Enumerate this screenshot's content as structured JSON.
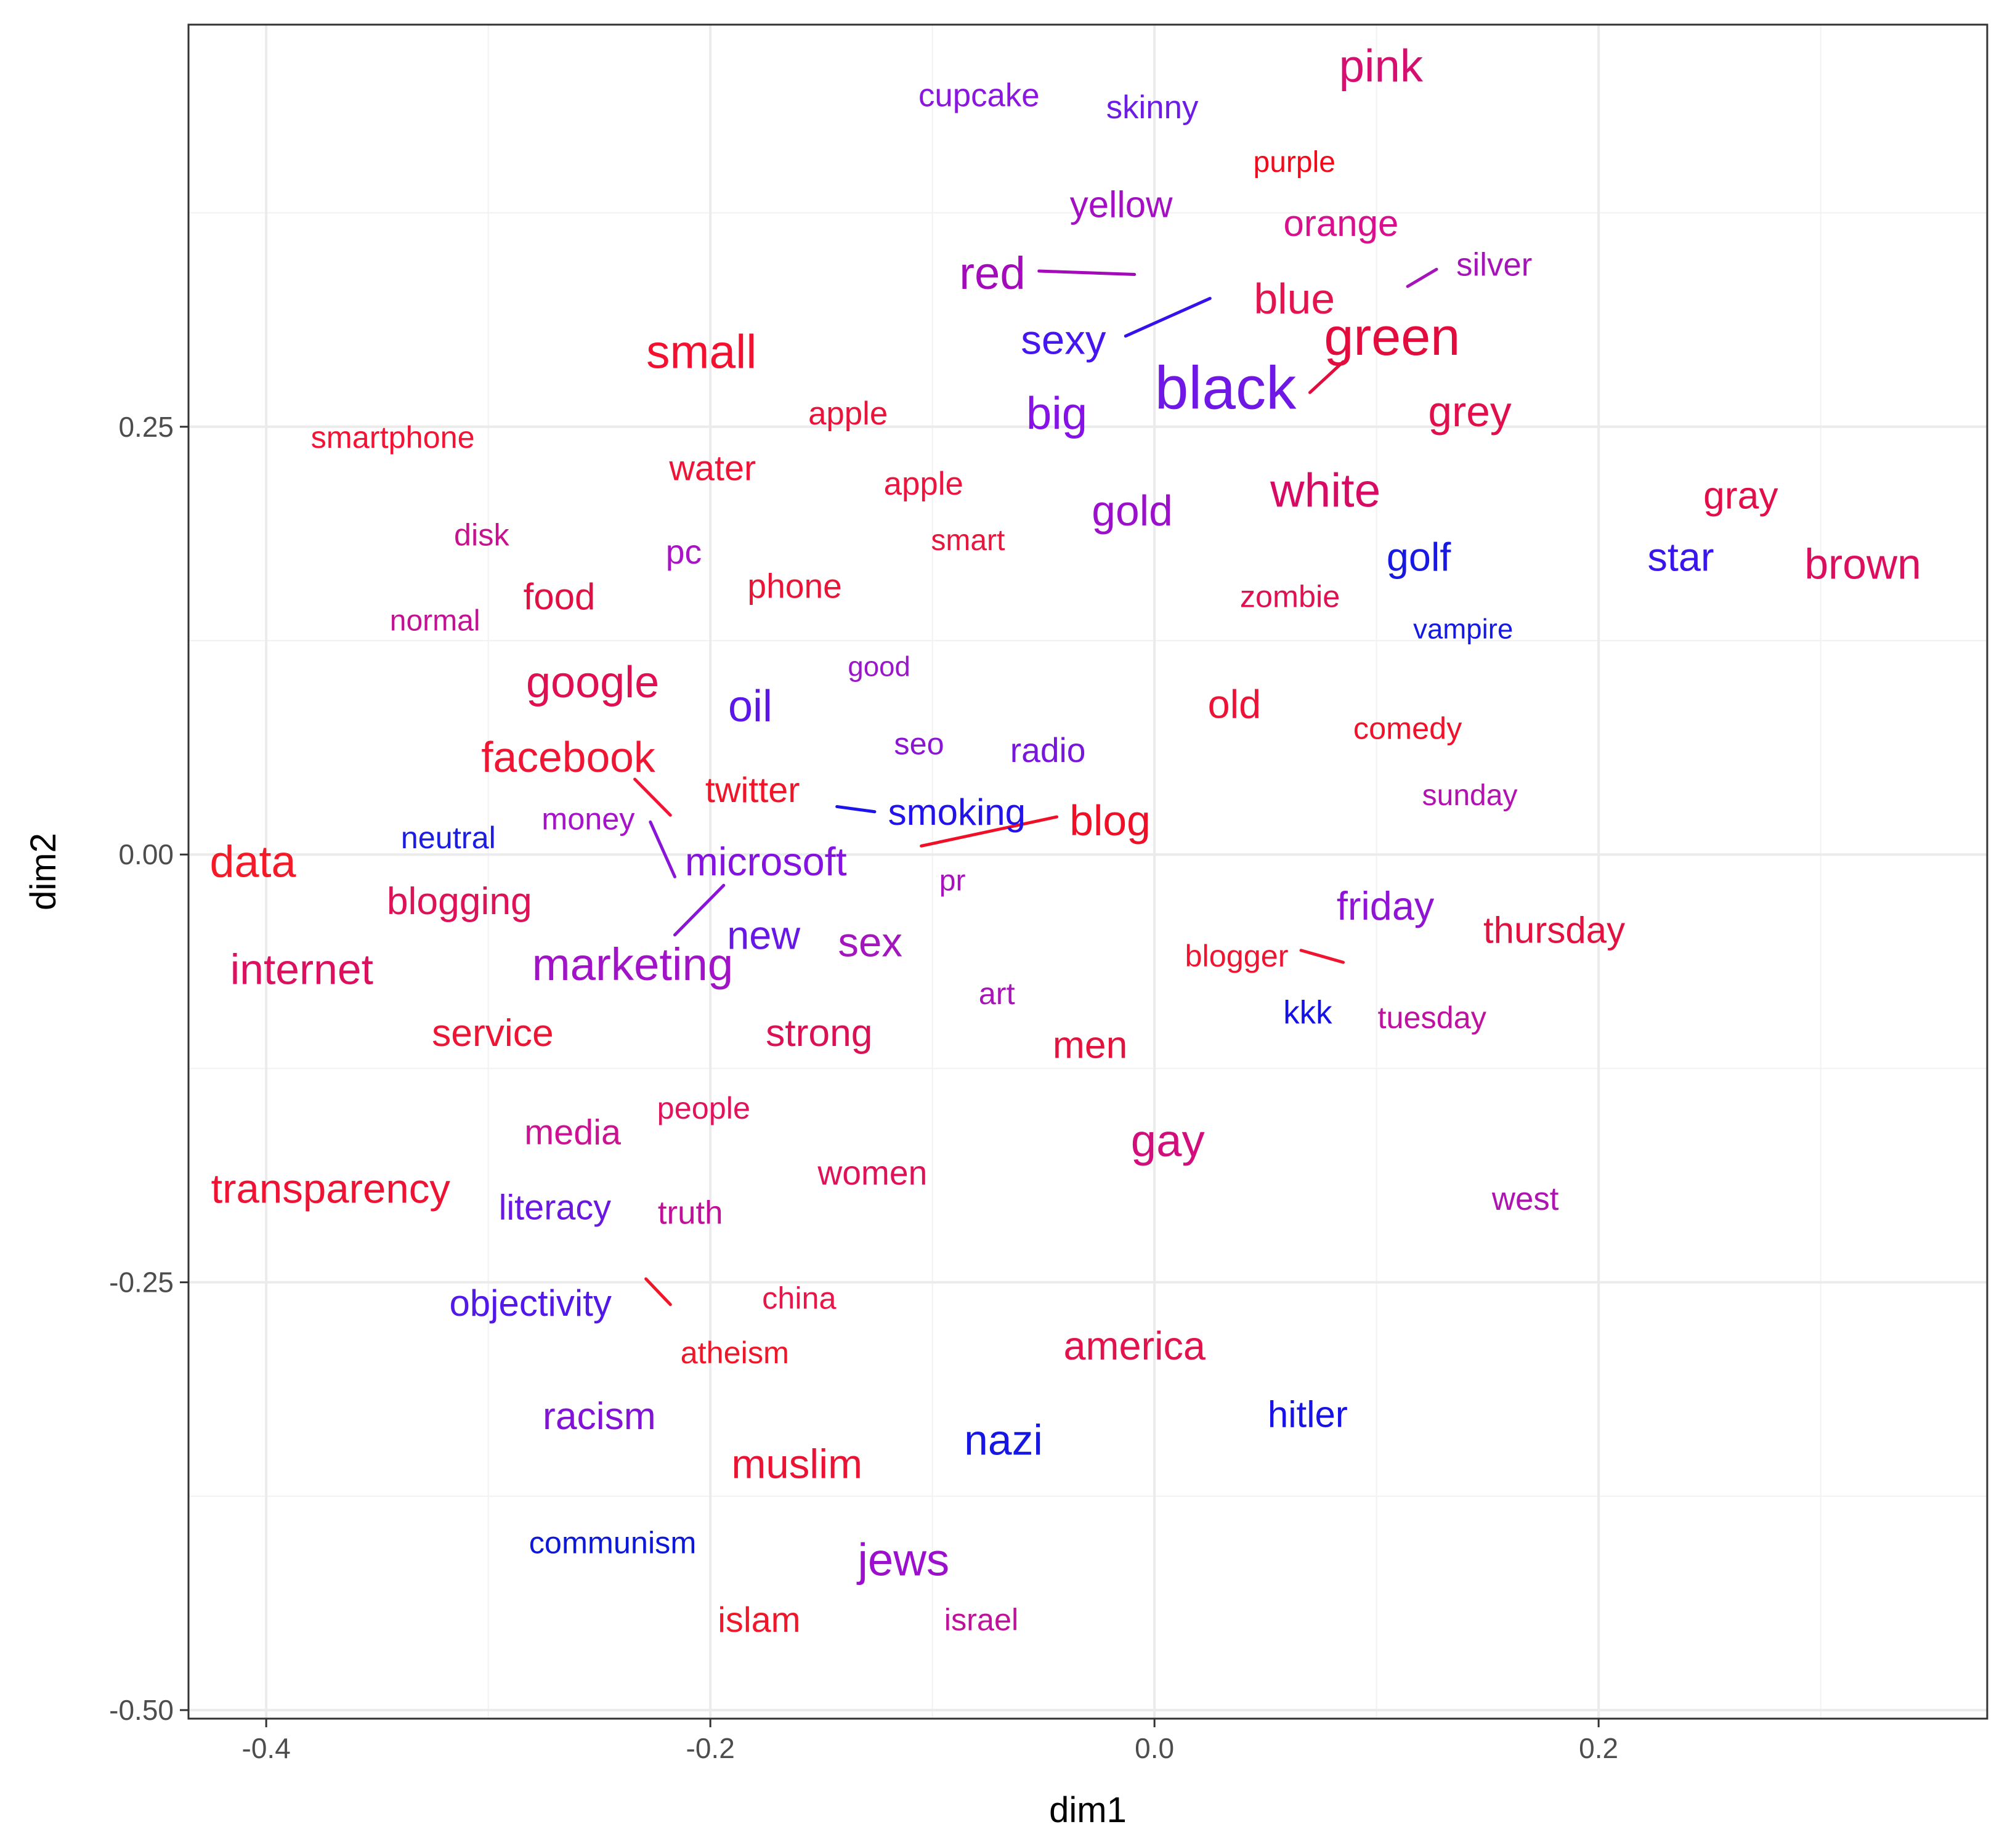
{
  "chart_data": {
    "type": "scatter",
    "title": "",
    "xlabel": "dim1",
    "ylabel": "dim2",
    "xlim": [
      -0.435,
      0.375
    ],
    "ylim": [
      -0.505,
      0.485
    ],
    "x_ticks": [
      -0.4,
      -0.2,
      0.0,
      0.2
    ],
    "x_tick_labels": [
      "-0.4",
      "-0.2",
      "0.0",
      "0.2"
    ],
    "y_ticks": [
      -0.5,
      -0.25,
      0.0,
      0.25
    ],
    "y_tick_labels": [
      "-0.50",
      "-0.25",
      "0.00",
      "0.25"
    ],
    "grid": true,
    "legend": "none",
    "points": [
      {
        "label": "pink",
        "x": 0.102,
        "y": 0.461,
        "color": "#d60e6f",
        "size": 1.55
      },
      {
        "label": "cupcake",
        "x": -0.079,
        "y": 0.444,
        "color": "#8a16df",
        "size": 1.1
      },
      {
        "label": "skinny",
        "x": -0.001,
        "y": 0.437,
        "color": "#6d1ce6",
        "size": 1.1
      },
      {
        "label": "purple",
        "x": 0.063,
        "y": 0.405,
        "color": "#f00a1a",
        "size": 1.0
      },
      {
        "label": "yellow",
        "x": -0.015,
        "y": 0.38,
        "color": "#a310c4",
        "size": 1.25
      },
      {
        "label": "orange",
        "x": 0.084,
        "y": 0.369,
        "color": "#d8108d",
        "size": 1.25
      },
      {
        "label": "red",
        "x": -0.073,
        "y": 0.34,
        "color": "#a30ab9",
        "size": 1.55
      },
      {
        "label": "silver",
        "x": 0.153,
        "y": 0.345,
        "color": "#a514b8",
        "size": 1.1
      },
      {
        "label": "blue",
        "x": 0.063,
        "y": 0.325,
        "color": "#e4144f",
        "size": 1.45
      },
      {
        "label": "sexy",
        "x": -0.041,
        "y": 0.301,
        "color": "#4516f0",
        "size": 1.4
      },
      {
        "label": "green",
        "x": 0.107,
        "y": 0.303,
        "color": "#e20c3d",
        "size": 1.8
      },
      {
        "label": "small",
        "x": -0.204,
        "y": 0.294,
        "color": "#f4112f",
        "size": 1.6
      },
      {
        "label": "black",
        "x": 0.032,
        "y": 0.273,
        "color": "#6f17e4",
        "size": 2.05
      },
      {
        "label": "big",
        "x": -0.044,
        "y": 0.258,
        "color": "#8612e7",
        "size": 1.55
      },
      {
        "label": "grey",
        "x": 0.142,
        "y": 0.259,
        "color": "#e10f4c",
        "size": 1.45
      },
      {
        "label": "apple",
        "x": -0.138,
        "y": 0.258,
        "color": "#ea133a",
        "size": 1.1
      },
      {
        "label": "smartphone",
        "x": -0.343,
        "y": 0.244,
        "color": "#f31335",
        "size": 1.05
      },
      {
        "label": "water",
        "x": -0.199,
        "y": 0.226,
        "color": "#ef1336",
        "size": 1.2
      },
      {
        "label": "apple",
        "x": -0.104,
        "y": 0.217,
        "color": "#ed1440",
        "size": 1.1
      },
      {
        "label": "white",
        "x": 0.077,
        "y": 0.213,
        "color": "#d80b64",
        "size": 1.6
      },
      {
        "label": "gray",
        "x": 0.264,
        "y": 0.21,
        "color": "#e20e49",
        "size": 1.3
      },
      {
        "label": "gold",
        "x": -0.01,
        "y": 0.201,
        "color": "#9a10cb",
        "size": 1.45
      },
      {
        "label": "disk",
        "x": -0.303,
        "y": 0.187,
        "color": "#c8118e",
        "size": 1.05
      },
      {
        "label": "smart",
        "x": -0.084,
        "y": 0.184,
        "color": "#e6163d",
        "size": 1.0
      },
      {
        "label": "pc",
        "x": -0.212,
        "y": 0.177,
        "color": "#a813c6",
        "size": 1.15
      },
      {
        "label": "golf",
        "x": 0.119,
        "y": 0.174,
        "color": "#1718e2",
        "size": 1.35
      },
      {
        "label": "star",
        "x": 0.237,
        "y": 0.174,
        "color": "#3b16ea",
        "size": 1.35
      },
      {
        "label": "brown",
        "x": 0.319,
        "y": 0.17,
        "color": "#dc0f5e",
        "size": 1.45
      },
      {
        "label": "phone",
        "x": -0.162,
        "y": 0.157,
        "color": "#ea1437",
        "size": 1.15
      },
      {
        "label": "food",
        "x": -0.268,
        "y": 0.151,
        "color": "#e20f43",
        "size": 1.25
      },
      {
        "label": "zombie",
        "x": 0.061,
        "y": 0.151,
        "color": "#e01151",
        "size": 1.05
      },
      {
        "label": "normal",
        "x": -0.324,
        "y": 0.137,
        "color": "#c21193",
        "size": 1.0
      },
      {
        "label": "vampire",
        "x": 0.139,
        "y": 0.132,
        "color": "#1419e3",
        "size": 0.95
      },
      {
        "label": "good",
        "x": -0.124,
        "y": 0.11,
        "color": "#9a15cc",
        "size": 0.95
      },
      {
        "label": "google",
        "x": -0.253,
        "y": 0.101,
        "color": "#df0f52",
        "size": 1.5
      },
      {
        "label": "oil",
        "x": -0.182,
        "y": 0.087,
        "color": "#5c17e8",
        "size": 1.5
      },
      {
        "label": "old",
        "x": 0.036,
        "y": 0.088,
        "color": "#ec1336",
        "size": 1.35
      },
      {
        "label": "comedy",
        "x": 0.114,
        "y": 0.074,
        "color": "#ef122a",
        "size": 1.05
      },
      {
        "label": "seo",
        "x": -0.106,
        "y": 0.065,
        "color": "#8c15d4",
        "size": 1.05
      },
      {
        "label": "radio",
        "x": -0.048,
        "y": 0.061,
        "color": "#7816de",
        "size": 1.15
      },
      {
        "label": "facebook",
        "x": -0.264,
        "y": 0.057,
        "color": "#ef1634",
        "size": 1.45
      },
      {
        "label": "twitter",
        "x": -0.181,
        "y": 0.038,
        "color": "#ef1629",
        "size": 1.2
      },
      {
        "label": "sunday",
        "x": 0.142,
        "y": 0.035,
        "color": "#b013ae",
        "size": 1.0
      },
      {
        "label": "smoking",
        "x": -0.089,
        "y": 0.025,
        "color": "#2113ea",
        "size": 1.25
      },
      {
        "label": "blog",
        "x": -0.02,
        "y": 0.02,
        "color": "#ef1028",
        "size": 1.45
      },
      {
        "label": "money",
        "x": -0.255,
        "y": 0.021,
        "color": "#a613c9",
        "size": 1.05
      },
      {
        "label": "neutral",
        "x": -0.318,
        "y": 0.01,
        "color": "#1b1de1",
        "size": 1.05
      },
      {
        "label": "data",
        "x": -0.406,
        "y": -0.004,
        "color": "#f41a28",
        "size": 1.5
      },
      {
        "label": "microsoft",
        "x": -0.175,
        "y": -0.004,
        "color": "#8513e0",
        "size": 1.35
      },
      {
        "label": "pr",
        "x": -0.091,
        "y": -0.015,
        "color": "#a813bd",
        "size": 1.0
      },
      {
        "label": "blogging",
        "x": -0.313,
        "y": -0.027,
        "color": "#dd1257",
        "size": 1.3
      },
      {
        "label": "friday",
        "x": 0.104,
        "y": -0.03,
        "color": "#8f14d3",
        "size": 1.35
      },
      {
        "label": "new",
        "x": -0.176,
        "y": -0.047,
        "color": "#6718e6",
        "size": 1.35
      },
      {
        "label": "sex",
        "x": -0.128,
        "y": -0.051,
        "color": "#a416bd",
        "size": 1.4
      },
      {
        "label": "thursday",
        "x": 0.18,
        "y": -0.044,
        "color": "#e31140",
        "size": 1.25
      },
      {
        "label": "blogger",
        "x": 0.037,
        "y": -0.059,
        "color": "#ef1430",
        "size": 1.05
      },
      {
        "label": "internet",
        "x": -0.384,
        "y": -0.067,
        "color": "#dd1060",
        "size": 1.45
      },
      {
        "label": "marketing",
        "x": -0.235,
        "y": -0.064,
        "color": "#a113c6",
        "size": 1.55
      },
      {
        "label": "art",
        "x": -0.071,
        "y": -0.081,
        "color": "#a914b7",
        "size": 1.05
      },
      {
        "label": "kkk",
        "x": 0.069,
        "y": -0.092,
        "color": "#1512e7",
        "size": 1.1
      },
      {
        "label": "tuesday",
        "x": 0.125,
        "y": -0.095,
        "color": "#bf11a0",
        "size": 1.05
      },
      {
        "label": "service",
        "x": -0.298,
        "y": -0.104,
        "color": "#ed1533",
        "size": 1.3
      },
      {
        "label": "strong",
        "x": -0.151,
        "y": -0.104,
        "color": "#dc1153",
        "size": 1.3
      },
      {
        "label": "men",
        "x": -0.029,
        "y": -0.111,
        "color": "#e3133e",
        "size": 1.3
      },
      {
        "label": "media",
        "x": -0.262,
        "y": -0.162,
        "color": "#cb1293",
        "size": 1.2
      },
      {
        "label": "people",
        "x": -0.203,
        "y": -0.148,
        "color": "#e1135c",
        "size": 1.05
      },
      {
        "label": "gay",
        "x": 0.006,
        "y": -0.167,
        "color": "#d20e7d",
        "size": 1.55
      },
      {
        "label": "transparency",
        "x": -0.371,
        "y": -0.195,
        "color": "#ee1233",
        "size": 1.4
      },
      {
        "label": "women",
        "x": -0.127,
        "y": -0.186,
        "color": "#df1259",
        "size": 1.15
      },
      {
        "label": "literacy",
        "x": -0.27,
        "y": -0.206,
        "color": "#6a17e2",
        "size": 1.2
      },
      {
        "label": "truth",
        "x": -0.209,
        "y": -0.209,
        "color": "#c20f99",
        "size": 1.1
      },
      {
        "label": "west",
        "x": 0.167,
        "y": -0.201,
        "color": "#ae14af",
        "size": 1.1
      },
      {
        "label": "objectivity",
        "x": -0.281,
        "y": -0.262,
        "color": "#5218ea",
        "size": 1.25
      },
      {
        "label": "china",
        "x": -0.16,
        "y": -0.259,
        "color": "#e8174a",
        "size": 1.05
      },
      {
        "label": "atheism",
        "x": -0.189,
        "y": -0.291,
        "color": "#f11528",
        "size": 1.05
      },
      {
        "label": "america",
        "x": -0.009,
        "y": -0.287,
        "color": "#e2124c",
        "size": 1.35
      },
      {
        "label": "hitler",
        "x": 0.069,
        "y": -0.327,
        "color": "#1712e6",
        "size": 1.25
      },
      {
        "label": "racism",
        "x": -0.25,
        "y": -0.328,
        "color": "#8212d6",
        "size": 1.3
      },
      {
        "label": "nazi",
        "x": -0.068,
        "y": -0.342,
        "color": "#1717e4",
        "size": 1.45
      },
      {
        "label": "muslim",
        "x": -0.161,
        "y": -0.356,
        "color": "#eb1333",
        "size": 1.4
      },
      {
        "label": "communism",
        "x": -0.244,
        "y": -0.402,
        "color": "#0b17d9",
        "size": 1.05
      },
      {
        "label": "jews",
        "x": -0.113,
        "y": -0.412,
        "color": "#9b10cc",
        "size": 1.55
      },
      {
        "label": "islam",
        "x": -0.178,
        "y": -0.447,
        "color": "#f0172a",
        "size": 1.2
      },
      {
        "label": "israel",
        "x": -0.078,
        "y": -0.447,
        "color": "#c0119c",
        "size": 1.05
      }
    ],
    "segments": [
      {
        "x1": -0.052,
        "y1": 0.341,
        "x2": -0.009,
        "y2": 0.339,
        "color": "#a30ab9"
      },
      {
        "x1": -0.013,
        "y1": 0.303,
        "x2": 0.025,
        "y2": 0.325,
        "color": "#3512ea"
      },
      {
        "x1": 0.07,
        "y1": 0.27,
        "x2": 0.085,
        "y2": 0.288,
        "color": "#e20c3d"
      },
      {
        "x1": 0.114,
        "y1": 0.332,
        "x2": 0.127,
        "y2": 0.342,
        "color": "#a514b8"
      },
      {
        "x1": -0.234,
        "y1": 0.044,
        "x2": -0.218,
        "y2": 0.023,
        "color": "#ef1634"
      },
      {
        "x1": -0.227,
        "y1": 0.019,
        "x2": -0.216,
        "y2": -0.013,
        "color": "#8a14d8"
      },
      {
        "x1": -0.194,
        "y1": -0.018,
        "x2": -0.216,
        "y2": -0.047,
        "color": "#8a14d8"
      },
      {
        "x1": -0.143,
        "y1": 0.028,
        "x2": -0.126,
        "y2": 0.025,
        "color": "#1d14ea"
      },
      {
        "x1": -0.105,
        "y1": 0.005,
        "x2": -0.044,
        "y2": 0.022,
        "color": "#ef1028"
      },
      {
        "x1": 0.066,
        "y1": -0.056,
        "x2": 0.085,
        "y2": -0.063,
        "color": "#ef1430"
      },
      {
        "x1": -0.229,
        "y1": -0.248,
        "x2": -0.218,
        "y2": -0.263,
        "color": "#f11528"
      }
    ]
  }
}
